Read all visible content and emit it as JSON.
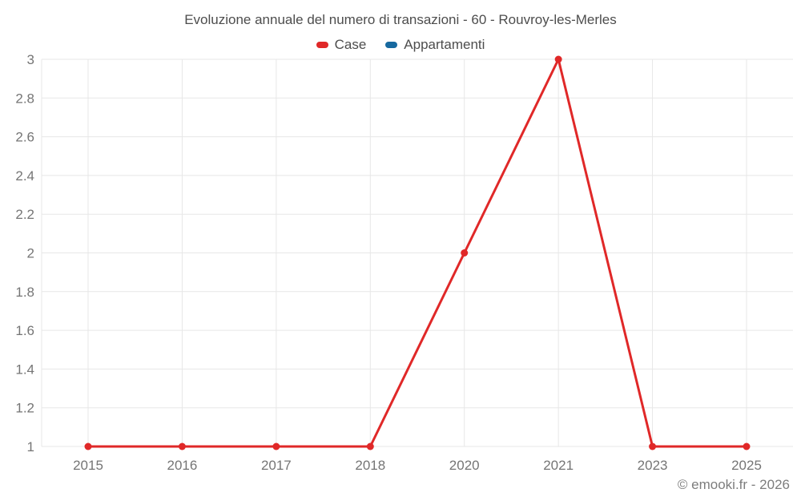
{
  "header": {
    "title": "Evoluzione annuale del numero di transazioni - 60 - Rouvroy-les-Merles"
  },
  "legend": {
    "items": [
      {
        "label": "Case",
        "color": "#e02828"
      },
      {
        "label": "Appartamenti",
        "color": "#17699f"
      }
    ]
  },
  "footer": {
    "credit": "© emooki.fr - 2026"
  },
  "colors": {
    "case_series": "#e02828",
    "appartamenti_series": "#17699f",
    "gridline": "#e7e7e7",
    "axis_label": "#757575",
    "title_text": "#4d4d4d",
    "credit_text": "#7d7d7d"
  },
  "chart_data": {
    "type": "line",
    "title": "Evoluzione annuale del numero di transazioni - 60 - Rouvroy-les-Merles",
    "categories": [
      "2015",
      "2016",
      "2017",
      "2018",
      "2020",
      "2021",
      "2023",
      "2025"
    ],
    "series": [
      {
        "name": "Case",
        "color": "#e02828",
        "values": [
          1,
          1,
          1,
          1,
          2,
          3,
          1,
          1
        ]
      },
      {
        "name": "Appartamenti",
        "color": "#17699f",
        "values": []
      }
    ],
    "xlabel": "",
    "ylabel": "",
    "ylim": [
      1,
      3
    ],
    "ytick_step": 0.2,
    "ytick_labels": [
      "1",
      "1.2",
      "1.4",
      "1.6",
      "1.8",
      "2",
      "2.2",
      "2.4",
      "2.6",
      "2.8",
      "3"
    ],
    "grid": "both",
    "legend_position": "top",
    "markers": true
  }
}
